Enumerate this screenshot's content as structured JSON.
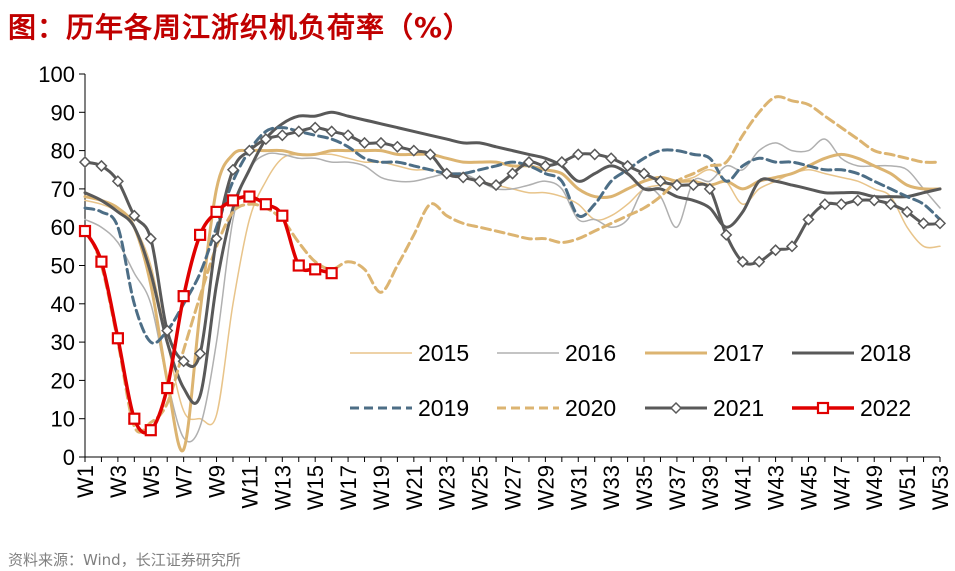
{
  "title": "图：历年各周江浙织机负荷率（%）",
  "source": "资料来源：Wind，长江证券研究所",
  "chart_data": {
    "type": "line",
    "title": "历年各周江浙织机负荷率（%）",
    "xlabel": "",
    "ylabel": "",
    "ylim": [
      0,
      100
    ],
    "yticks": [
      0,
      10,
      20,
      30,
      40,
      50,
      60,
      70,
      80,
      90,
      100
    ],
    "xlim": [
      1,
      53
    ],
    "xticks": [
      1,
      3,
      5,
      7,
      9,
      11,
      13,
      15,
      17,
      19,
      21,
      23,
      25,
      27,
      29,
      31,
      33,
      35,
      37,
      39,
      41,
      43,
      45,
      47,
      49,
      51,
      53
    ],
    "xtick_labels": [
      "W1",
      "W3",
      "W5",
      "W7",
      "W9",
      "W11",
      "W13",
      "W15",
      "W17",
      "W19",
      "W21",
      "W23",
      "W25",
      "W27",
      "W29",
      "W31",
      "W33",
      "W35",
      "W37",
      "W39",
      "W41",
      "W43",
      "W45",
      "W47",
      "W49",
      "W51",
      "W53"
    ],
    "series": [
      {
        "name": "2015",
        "color": "#e8c48a",
        "width": 1.5,
        "dash": "",
        "marker": "none",
        "x": [
          1,
          2,
          3,
          4,
          5,
          6,
          7,
          8,
          9,
          10,
          11,
          12,
          13,
          14,
          15,
          16,
          17,
          18,
          19,
          20,
          21,
          22,
          23,
          24,
          25,
          26,
          27,
          28,
          29,
          30,
          31,
          32,
          33,
          34,
          35,
          36,
          37,
          38,
          39,
          40,
          41,
          42,
          43,
          44,
          45,
          46,
          47,
          48,
          49,
          50,
          51,
          52,
          53
        ],
        "y": [
          67,
          66,
          64,
          60,
          50,
          30,
          12,
          10,
          11,
          40,
          62,
          72,
          78,
          79,
          79,
          79,
          78,
          77,
          77,
          76,
          75,
          75,
          74,
          73,
          72,
          71,
          70,
          69,
          69,
          68,
          66,
          62,
          63,
          66,
          70,
          71,
          72,
          73,
          75,
          72,
          66,
          70,
          72,
          74,
          75,
          74,
          73,
          72,
          70,
          68,
          60,
          55,
          55
        ]
      },
      {
        "name": "2016",
        "color": "#b0b0b0",
        "width": 1.5,
        "dash": "",
        "marker": "none",
        "x": [
          1,
          2,
          3,
          4,
          5,
          6,
          7,
          8,
          9,
          10,
          11,
          12,
          13,
          14,
          15,
          16,
          17,
          18,
          19,
          20,
          21,
          22,
          23,
          24,
          25,
          26,
          27,
          28,
          29,
          30,
          31,
          32,
          33,
          34,
          35,
          36,
          37,
          38,
          39,
          40,
          41,
          42,
          43,
          44,
          45,
          46,
          47,
          48,
          49,
          50,
          51,
          52,
          53
        ],
        "y": [
          62,
          60,
          56,
          48,
          40,
          20,
          5,
          8,
          30,
          62,
          75,
          79,
          79,
          78,
          78,
          77,
          77,
          76,
          73,
          72,
          72,
          73,
          74,
          74,
          72,
          70,
          70,
          71,
          72,
          70,
          62,
          62,
          60,
          62,
          70,
          68,
          60,
          72,
          72,
          76,
          75,
          80,
          82,
          80,
          80,
          83,
          78,
          76,
          76,
          76,
          75,
          70,
          65
        ]
      },
      {
        "name": "2017",
        "color": "#dcb471",
        "width": 3,
        "dash": "",
        "marker": "none",
        "x": [
          1,
          2,
          3,
          4,
          5,
          6,
          7,
          8,
          9,
          10,
          11,
          12,
          13,
          14,
          15,
          16,
          17,
          18,
          19,
          20,
          21,
          22,
          23,
          24,
          25,
          26,
          27,
          28,
          29,
          30,
          31,
          32,
          33,
          34,
          35,
          36,
          37,
          38,
          39,
          40,
          41,
          42,
          43,
          44,
          45,
          46,
          47,
          48,
          49,
          50,
          51,
          52,
          53
        ],
        "y": [
          68,
          67,
          65,
          60,
          45,
          20,
          2,
          38,
          70,
          79,
          80,
          80,
          80,
          79,
          79,
          80,
          80,
          80,
          80,
          79,
          79,
          79,
          78,
          77,
          77,
          77,
          76,
          76,
          75,
          74,
          70,
          68,
          68,
          70,
          72,
          73,
          72,
          72,
          71,
          72,
          70,
          72,
          73,
          74,
          76,
          78,
          79,
          78,
          76,
          74,
          71,
          70,
          70
        ]
      },
      {
        "name": "2018",
        "color": "#595959",
        "width": 3,
        "dash": "",
        "marker": "none",
        "x": [
          1,
          2,
          3,
          4,
          5,
          6,
          7,
          8,
          9,
          10,
          11,
          12,
          13,
          14,
          15,
          16,
          17,
          18,
          19,
          20,
          21,
          22,
          23,
          24,
          25,
          26,
          27,
          28,
          29,
          30,
          31,
          32,
          33,
          34,
          35,
          36,
          37,
          38,
          39,
          40,
          41,
          42,
          43,
          44,
          45,
          46,
          47,
          48,
          49,
          50,
          51,
          52,
          53
        ],
        "y": [
          69,
          67,
          64,
          60,
          48,
          30,
          18,
          16,
          45,
          65,
          75,
          83,
          87,
          89,
          89,
          90,
          89,
          88,
          87,
          86,
          85,
          84,
          83,
          82,
          82,
          81,
          80,
          79,
          78,
          76,
          72,
          74,
          76,
          74,
          70,
          70,
          68,
          67,
          65,
          60,
          64,
          72,
          72,
          71,
          70,
          69,
          69,
          69,
          68,
          68,
          68,
          69,
          70
        ]
      },
      {
        "name": "2019",
        "color": "#4d6e86",
        "width": 3,
        "dash": "9 5",
        "marker": "none",
        "x": [
          1,
          2,
          3,
          4,
          5,
          6,
          7,
          8,
          9,
          10,
          11,
          12,
          13,
          14,
          15,
          16,
          17,
          18,
          19,
          20,
          21,
          22,
          23,
          24,
          25,
          26,
          27,
          28,
          29,
          30,
          31,
          32,
          33,
          34,
          35,
          36,
          37,
          38,
          39,
          40,
          41,
          42,
          43,
          44,
          45,
          46,
          47,
          48,
          49,
          50,
          51,
          52,
          53
        ],
        "y": [
          65,
          64,
          60,
          40,
          30,
          33,
          40,
          48,
          60,
          72,
          80,
          85,
          86,
          85,
          84,
          83,
          81,
          78,
          77,
          77,
          76,
          75,
          74,
          74,
          75,
          76,
          77,
          76,
          74,
          72,
          63,
          66,
          72,
          75,
          78,
          80,
          80,
          79,
          78,
          72,
          76,
          78,
          77,
          77,
          76,
          75,
          75,
          74,
          72,
          70,
          68,
          66,
          62
        ]
      },
      {
        "name": "2020",
        "color": "#dcb471",
        "width": 3,
        "dash": "9 5",
        "marker": "none",
        "x": [
          1,
          2,
          3,
          4,
          5,
          6,
          7,
          8,
          9,
          10,
          11,
          12,
          13,
          14,
          15,
          16,
          17,
          18,
          19,
          20,
          21,
          22,
          23,
          24,
          25,
          26,
          27,
          28,
          29,
          30,
          31,
          32,
          33,
          34,
          35,
          36,
          37,
          38,
          39,
          40,
          41,
          42,
          43,
          44,
          45,
          46,
          47,
          48,
          49,
          50,
          51,
          52,
          53
        ],
        "y": [
          60,
          50,
          30,
          8,
          9,
          14,
          28,
          42,
          55,
          64,
          66,
          65,
          62,
          56,
          51,
          49,
          51,
          49,
          43,
          50,
          58,
          66,
          63,
          61,
          60,
          59,
          58,
          57,
          57,
          56,
          57,
          59,
          61,
          63,
          65,
          68,
          72,
          74,
          76,
          77,
          84,
          90,
          94,
          93,
          92,
          89,
          86,
          83,
          80,
          79,
          78,
          77,
          77
        ]
      },
      {
        "name": "2021",
        "color": "#595959",
        "width": 3,
        "dash": "",
        "marker": "diamond",
        "x": [
          1,
          2,
          3,
          4,
          5,
          6,
          7,
          8,
          9,
          10,
          11,
          12,
          13,
          14,
          15,
          16,
          17,
          18,
          19,
          20,
          21,
          22,
          23,
          24,
          25,
          26,
          27,
          28,
          29,
          30,
          31,
          32,
          33,
          34,
          35,
          36,
          37,
          38,
          39,
          40,
          41,
          42,
          43,
          44,
          45,
          46,
          47,
          48,
          49,
          50,
          51,
          52,
          53
        ],
        "y": [
          77,
          76,
          72,
          63,
          57,
          33,
          25,
          27,
          57,
          75,
          80,
          83,
          84,
          85,
          86,
          85,
          84,
          82,
          82,
          81,
          80,
          79,
          74,
          73,
          72,
          71,
          74,
          77,
          76,
          77,
          79,
          79,
          78,
          76,
          74,
          72,
          71,
          71,
          70,
          58,
          51,
          51,
          54,
          55,
          62,
          66,
          66,
          67,
          67,
          66,
          64,
          61,
          61
        ]
      },
      {
        "name": "2022",
        "color": "#e00000",
        "width": 3.5,
        "dash": "",
        "marker": "square",
        "x": [
          1,
          2,
          3,
          4,
          5,
          6,
          7,
          8,
          9,
          10,
          11,
          12,
          13,
          14,
          15,
          16
        ],
        "y": [
          59,
          51,
          31,
          10,
          7,
          18,
          42,
          58,
          64,
          67,
          68,
          66,
          63,
          50,
          49,
          48
        ]
      }
    ],
    "legend": {
      "position": "bottom-right",
      "columns": 4
    }
  }
}
